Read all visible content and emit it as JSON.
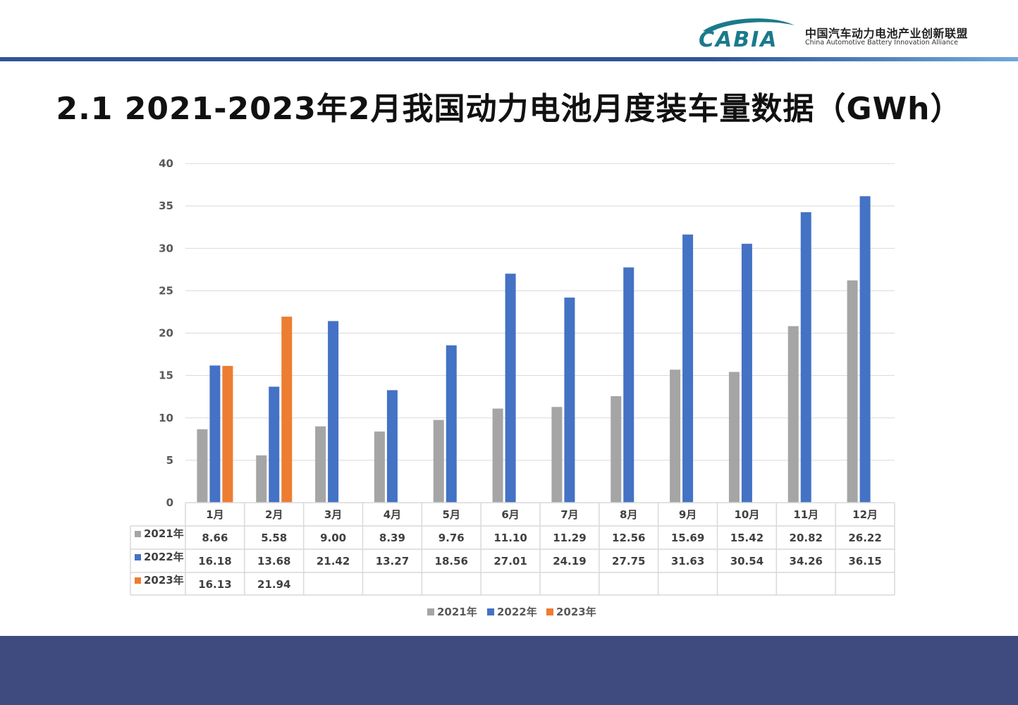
{
  "header": {
    "logo_text": "CABIA",
    "org_cn": "中国汽车动力电池产业创新联盟",
    "org_en": "China Automotive Battery Innovation Alliance"
  },
  "title": "2.1 2021-2023年2月我国动力电池月度装车量数据（GWh）",
  "colors": {
    "s2021": "#a5a5a5",
    "s2022": "#4472c4",
    "s2023": "#ed7d31",
    "header_bar": "#2f5597",
    "footer": "#3f4a7e"
  },
  "chart_data": {
    "type": "bar",
    "categories": [
      "1月",
      "2月",
      "3月",
      "4月",
      "5月",
      "6月",
      "7月",
      "8月",
      "9月",
      "10月",
      "11月",
      "12月"
    ],
    "series": [
      {
        "name": "2021年",
        "values": [
          8.66,
          5.58,
          9.0,
          8.39,
          9.76,
          11.1,
          11.29,
          12.56,
          15.69,
          15.42,
          20.82,
          26.22
        ]
      },
      {
        "name": "2022年",
        "values": [
          16.18,
          13.68,
          21.42,
          13.27,
          18.56,
          27.01,
          24.19,
          27.75,
          31.63,
          30.54,
          34.26,
          36.15
        ]
      },
      {
        "name": "2023年",
        "values": [
          16.13,
          21.94,
          null,
          null,
          null,
          null,
          null,
          null,
          null,
          null,
          null,
          null
        ]
      }
    ],
    "table_labels": {
      "2021年": [
        "8.66",
        "5.58",
        "9.00",
        "8.39",
        "9.76",
        "11.10",
        "11.29",
        "12.56",
        "15.69",
        "15.42",
        "20.82",
        "26.22"
      ],
      "2022年": [
        "16.18",
        "13.68",
        "21.42",
        "13.27",
        "18.56",
        "27.01",
        "24.19",
        "27.75",
        "31.63",
        "30.54",
        "34.26",
        "36.15"
      ],
      "2023年": [
        "16.13",
        "21.94",
        "",
        "",
        "",
        "",
        "",
        "",
        "",
        "",
        "",
        ""
      ]
    },
    "y_ticks": [
      "0",
      "5",
      "10",
      "15",
      "20",
      "25",
      "30",
      "35",
      "40"
    ],
    "ylim": [
      0,
      40
    ],
    "grid": true,
    "legend_position": "bottom",
    "data_table": true
  }
}
